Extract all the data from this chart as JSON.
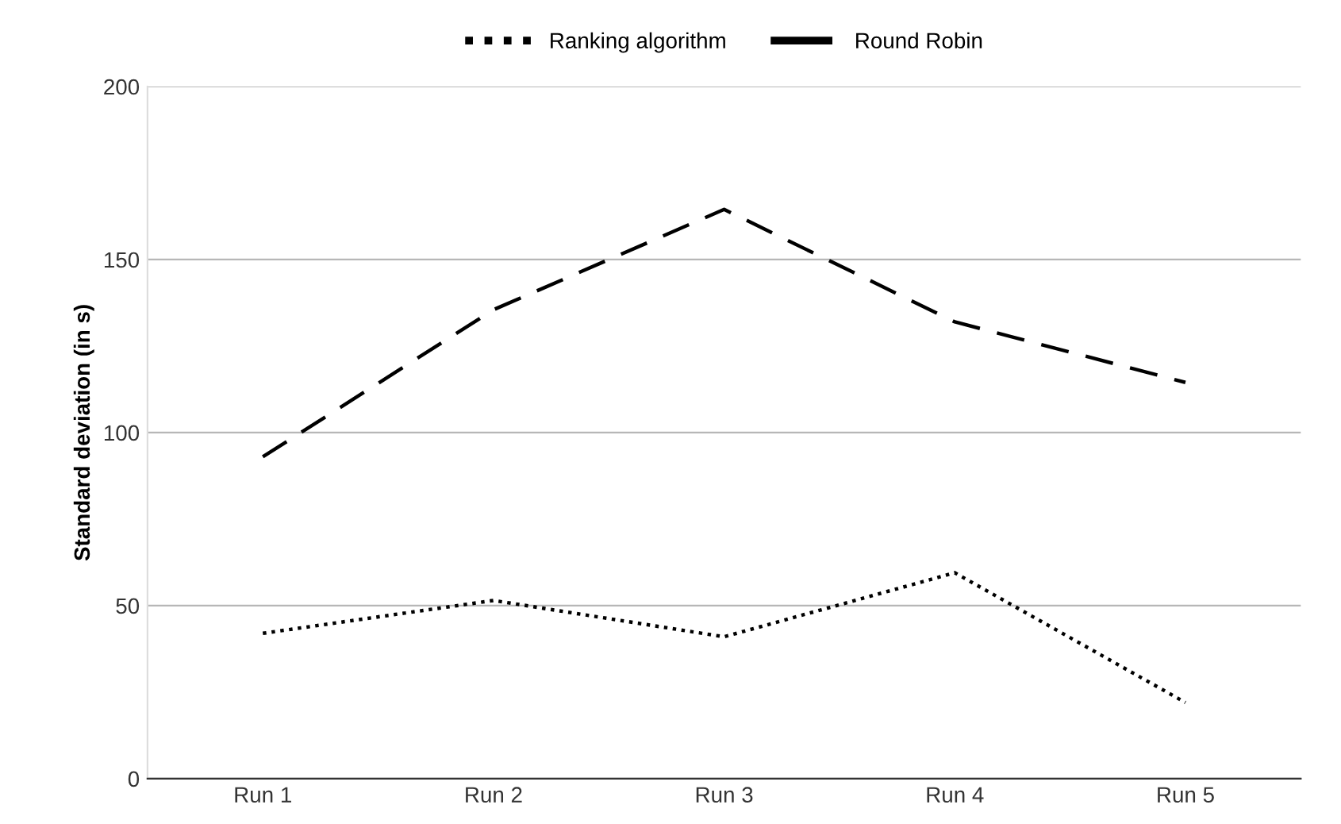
{
  "chart_data": {
    "type": "line",
    "ylabel": "Standard deviation (in s)",
    "categories": [
      "Run 1",
      "Run 2",
      "Run 3",
      "Run 4",
      "Run 5"
    ],
    "series": [
      {
        "name": "Ranking algorithm",
        "color": "#000000",
        "line_style": "dotted",
        "values": [
          42,
          51.5,
          41,
          59.5,
          22
        ]
      },
      {
        "name": "Round Robin",
        "color": "#000000",
        "line_style": "dashed",
        "values": [
          93,
          135.5,
          164.5,
          132,
          114.5
        ]
      }
    ],
    "ylim": [
      0,
      200
    ],
    "yticks": [
      0,
      50,
      100,
      150,
      200
    ],
    "grid": "y",
    "legend": "top",
    "marker": "none"
  }
}
